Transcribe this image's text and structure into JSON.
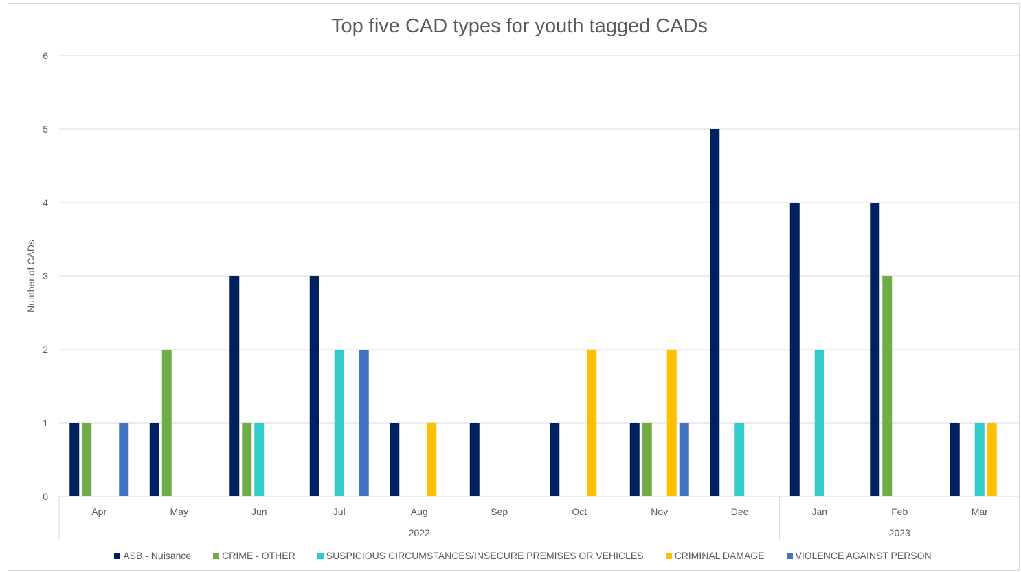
{
  "chart_data": {
    "type": "bar",
    "title": "Top five CAD types for youth tagged CADs",
    "ylabel": "Number of CADs",
    "xlabel": "",
    "ylim": [
      0,
      6
    ],
    "yticks": [
      "0",
      "1",
      "2",
      "3",
      "4",
      "5",
      "6"
    ],
    "grid": true,
    "legend_position": "bottom",
    "categories": [
      "Apr",
      "May",
      "Jun",
      "Jul",
      "Aug",
      "Sep",
      "Oct",
      "Nov",
      "Dec",
      "Jan",
      "Feb",
      "Mar"
    ],
    "groups": [
      {
        "label": "2022",
        "start": 0,
        "end": 8
      },
      {
        "label": "2023",
        "start": 9,
        "end": 11
      }
    ],
    "series": [
      {
        "name": "ASB - Nuisance",
        "color": "#002060",
        "values": [
          1,
          1,
          3,
          3,
          1,
          1,
          1,
          1,
          5,
          4,
          4,
          1
        ]
      },
      {
        "name": "CRIME - OTHER",
        "color": "#70ad47",
        "values": [
          1,
          2,
          1,
          0,
          0,
          0,
          0,
          1,
          0,
          0,
          3,
          0
        ]
      },
      {
        "name": "SUSPICIOUS CIRCUMSTANCES/INSECURE PREMISES OR VEHICLES",
        "color": "#33cccc",
        "values": [
          0,
          0,
          1,
          2,
          0,
          0,
          0,
          0,
          1,
          2,
          0,
          1
        ]
      },
      {
        "name": "CRIMINAL DAMAGE",
        "color": "#ffc000",
        "values": [
          0,
          0,
          0,
          0,
          1,
          0,
          2,
          2,
          0,
          0,
          0,
          1
        ]
      },
      {
        "name": "VIOLENCE AGAINST PERSON",
        "color": "#4472c4",
        "values": [
          1,
          0,
          0,
          2,
          0,
          0,
          0,
          1,
          0,
          0,
          0,
          0
        ]
      }
    ]
  }
}
